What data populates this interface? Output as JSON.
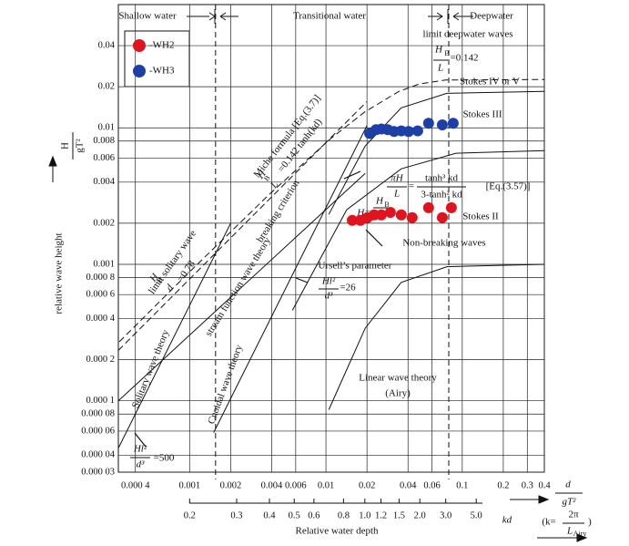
{
  "chart_data": {
    "type": "scatter",
    "xlabel": "d",
    "xlabel_den": "gT²",
    "ylabel": "relative wave height",
    "ylabel_num": "H",
    "ylabel_den": "gT²",
    "x2label": "Relative water depth",
    "log_x": true,
    "log_y": true,
    "grid": true,
    "legend": "upper left",
    "xlim": [
      0.0003,
      0.4
    ],
    "ylim": [
      3e-05,
      0.08
    ],
    "xticks": [
      {
        "value": 0.0004,
        "label": "0.000 4"
      },
      0.001,
      0.002,
      0.004,
      0.006,
      0.01,
      0.02,
      0.04,
      0.06,
      0.1,
      0.2,
      0.3,
      0.4
    ],
    "yticks": [
      0.04,
      0.02,
      0.01,
      0.008,
      0.006,
      0.004,
      0.002,
      0.001,
      {
        "value": 0.0008,
        "label": "0.000 8"
      },
      {
        "value": 0.0006,
        "label": "0.000 6"
      },
      {
        "value": 0.0004,
        "label": "0.000 4"
      },
      {
        "value": 0.0002,
        "label": "0.000 2"
      },
      {
        "value": 0.0001,
        "label": "0.000 1"
      },
      {
        "value": 8e-05,
        "label": "0.000 08"
      },
      {
        "value": 6e-05,
        "label": "0.000 06"
      },
      {
        "value": 4e-05,
        "label": "0.000 04"
      },
      {
        "value": 3e-05,
        "label": "0.000 03"
      }
    ],
    "kd_ticks": [
      0.2,
      0.3,
      0.4,
      0.5,
      0.6,
      0.8,
      {
        "value": 1,
        "label": "1.0"
      },
      1.2,
      1.5,
      {
        "value": 2,
        "label": "2.0"
      },
      {
        "value": 3,
        "label": "3.0"
      },
      {
        "value": 5,
        "label": "5.0"
      }
    ],
    "shallow_limit": 0.00155,
    "deep_limit": 0.0796,
    "series": [
      {
        "name": "-WH2",
        "color": "#e0141e",
        "x": [
          0.0156,
          0.0179,
          0.0202,
          0.0226,
          0.0255,
          0.0297,
          0.0357,
          0.0429,
          0.0566,
          0.0714,
          0.0832
        ],
        "values": [
          0.0021,
          0.0021,
          0.0022,
          0.0023,
          0.0023,
          0.0024,
          0.0023,
          0.0022,
          0.0026,
          0.0022,
          0.0026
        ]
      },
      {
        "name": "-WH3",
        "color": "#1f3fa8",
        "x": [
          0.0209,
          0.0233,
          0.0255,
          0.0284,
          0.0316,
          0.0357,
          0.0404,
          0.0471,
          0.0566,
          0.0714,
          0.0858
        ],
        "values": [
          0.0091,
          0.0097,
          0.0098,
          0.0097,
          0.0094,
          0.0095,
          0.0094,
          0.0095,
          0.0108,
          0.0105,
          0.0108
        ]
      }
    ],
    "curves": [
      {
        "dash": true,
        "x": [
          0.000305,
          0.000999,
          0.00385,
          0.0107,
          0.0193,
          0.0344,
          0.0488,
          0.0756,
          0.4
        ],
        "y": [
          0.000271,
          0.00088,
          0.00326,
          0.00825,
          0.0131,
          0.0185,
          0.021,
          0.0224,
          0.0226
        ]
      },
      {
        "dash": true,
        "x": [
          0.0003,
          0.002,
          0.01,
          0.02
        ],
        "y": [
          0.000234,
          0.00156,
          0.0078,
          0.0156
        ]
      },
      {
        "dash": false,
        "x": [
          0.0105,
          0.0194,
          0.0357,
          0.0771,
          0.4
        ],
        "y": [
          0.00232,
          0.00736,
          0.014,
          0.0179,
          0.0185
        ]
      },
      {
        "dash": false,
        "x": [
          0.00567,
          0.0142,
          0.0357,
          0.0899,
          0.4
        ],
        "y": [
          0.00046,
          0.00251,
          0.00501,
          0.00651,
          0.00681
        ]
      },
      {
        "dash": false,
        "x": [
          0.0105,
          0.0194,
          0.0357,
          0.0771,
          0.4
        ],
        "y": [
          8.6e-05,
          0.00034,
          0.000737,
          0.00096,
          0.001
        ]
      },
      {
        "dash": false,
        "x": [
          0.0003,
          0.0194
        ],
        "y": [
          0.0001,
          0.00464
        ]
      },
      {
        "dash": false,
        "x": [
          0.0015,
          0.01,
          0.02
        ],
        "y": [
          5.85e-05,
          0.0026,
          0.0104
        ]
      },
      {
        "dash": false,
        "x": [
          0.0003,
          0.002
        ],
        "y": [
          4.5e-05,
          0.002
        ]
      }
    ],
    "annotations": [
      "Shallow water",
      "Transitional water",
      "Deepwater",
      "limit deepwater waves",
      "H",
      "B",
      "L",
      "=0.142",
      "Stokes IV or V",
      "Stokes III",
      "Stokes II",
      "Non-breaking waves",
      "Miche formula [Eq.(3.7)]",
      "H",
      "B",
      "L",
      "=0.142 tanh(kd)",
      "breaking criterion",
      "πH",
      "L",
      "=",
      "tanh³ kd",
      "3-tanh² kd",
      "[Eq.(3.57)]",
      "H",
      "B",
      "L",
      "H=",
      "limit solitary wave",
      "H",
      "B",
      "d",
      "=0.78",
      "stream function wave theory",
      "Ursell’s parameter",
      "Hl²",
      "d³",
      "=26",
      "Solitary wave theory",
      "Cnoidal wave theory",
      "Linear wave theory",
      "(Airy)",
      "Hl²",
      "d³",
      "=500",
      "kd",
      "(k=",
      "2π",
      "L",
      "Airy",
      ")"
    ]
  }
}
